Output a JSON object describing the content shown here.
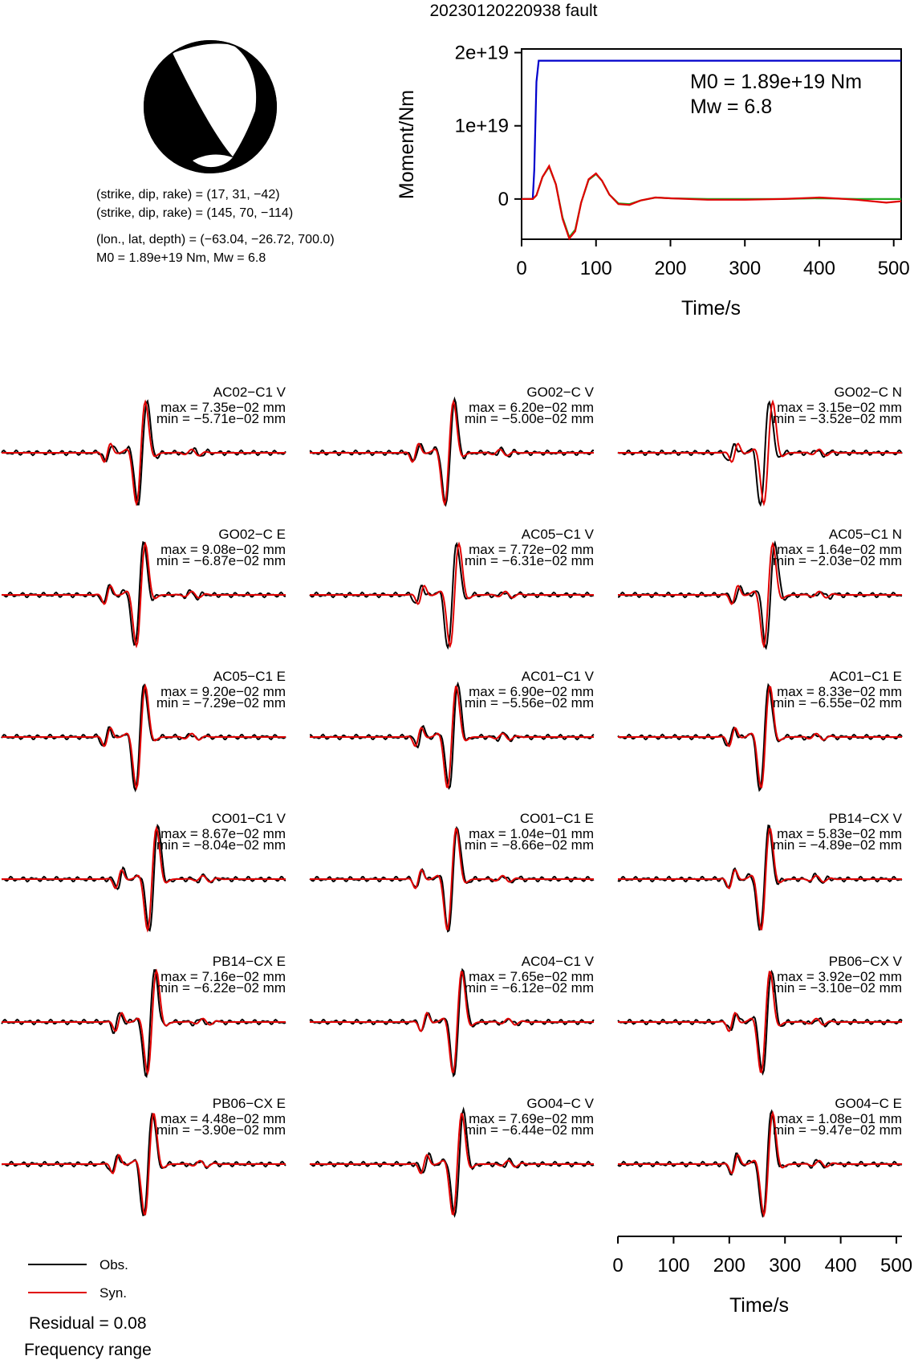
{
  "title": "20230120220938 fault",
  "mechanism": {
    "plane1": "(strike, dip, rake) = (17, 31, −42)",
    "plane2": "(strike, dip, rake) = (145, 70, −114)",
    "location": "(lon., lat, depth) = (−63.04, −26.72, 700.0)",
    "moment_line": "M0 = 1.89e+19 Nm, Mw = 6.8"
  },
  "moment_panel": {
    "ylabel": "Moment/Nm",
    "xlabel": "Time/s",
    "m0_label": "M0 = 1.89e+19 Nm",
    "mw_label": "Mw = 6.8"
  },
  "wave_xlabel": "Time/s",
  "legend": {
    "obs_label": "Obs.",
    "syn_label": "Syn.",
    "obs_color": "#000000",
    "syn_color": "#e00000"
  },
  "residual": "Residual = 0.08",
  "freq_label": "Frequency range",
  "colors": {
    "cumulative": "#0000cc",
    "stf": "#e00000",
    "stf_alt": "#22aa22"
  },
  "chart_data": [
    {
      "type": "line",
      "xlabel": "Time/s",
      "ylabel": "Moment/Nm",
      "xlim": [
        0,
        510
      ],
      "ylim": [
        -5.5e+18,
        2.05e+19
      ],
      "xticks": [
        0,
        100,
        200,
        300,
        400,
        500
      ],
      "yticks": [
        0,
        1e+19,
        2e+19
      ],
      "ytick_labels": [
        "0",
        "1e+19",
        "2e+19"
      ],
      "series": [
        {
          "color": "#0000cc",
          "x": [
            0,
            15,
            17,
            20,
            23,
            30,
            510
          ],
          "y": [
            0,
            0,
            4e+18,
            1.6e+19,
            1.89e+19,
            1.89e+19,
            1.89e+19
          ]
        },
        {
          "color": "#22aa22",
          "x": [
            0,
            15,
            20,
            28,
            37,
            46,
            55,
            64,
            72,
            80,
            90,
            100,
            108,
            118,
            130,
            145,
            160,
            180,
            200,
            250,
            300,
            350,
            400,
            450,
            510
          ],
          "y": [
            0,
            0,
            5e+17,
            3e+18,
            4.4e+18,
            2e+18,
            -2.5e+18,
            -5.2e+18,
            -4.2e+18,
            -5e+17,
            2.6e+18,
            3.4e+18,
            2.5e+18,
            6e+17,
            -6e+17,
            -7e+17,
            -2e+17,
            2e+17,
            1e+17,
            0,
            0,
            0,
            1e+17,
            0,
            0
          ]
        },
        {
          "color": "#e00000",
          "x": [
            0,
            15,
            20,
            28,
            37,
            46,
            55,
            64,
            72,
            80,
            90,
            100,
            108,
            118,
            130,
            145,
            160,
            180,
            200,
            250,
            300,
            350,
            400,
            420,
            450,
            490,
            510
          ],
          "y": [
            0,
            0,
            5e+17,
            3e+18,
            4.5e+18,
            2e+18,
            -2.7e+18,
            -5.4e+18,
            -4.4e+18,
            -5e+17,
            2.7e+18,
            3.5e+18,
            2.5e+18,
            6e+17,
            -7e+17,
            -8e+17,
            -2e+17,
            2e+17,
            1e+17,
            -1e+17,
            -1e+17,
            0,
            2e+17,
            1e+17,
            -1e+17,
            -5e+17,
            -3e+17
          ]
        }
      ]
    },
    {
      "type": "line",
      "xlabel": "Time/s",
      "xlim": [
        0,
        510
      ],
      "xticks": [
        0,
        100,
        200,
        300,
        400,
        500
      ],
      "series": [
        {
          "name": "Obs."
        },
        {
          "name": "Syn."
        }
      ],
      "traces": [
        {
          "station": "AC02−C1 V",
          "max": "max = 7.35e−02 mm",
          "min": "min = −5.71e−02 mm",
          "ymax": 0.0735,
          "ymin": -0.0571,
          "t0": 250,
          "shift": 3
        },
        {
          "station": "GO02−C V",
          "max": "max = 6.20e−02 mm",
          "min": "min = −5.00e−02 mm",
          "ymax": 0.062,
          "ymin": -0.05,
          "t0": 250,
          "shift": 2
        },
        {
          "station": "GO02−C N",
          "max": "max = 3.15e−02 mm",
          "min": "min = −3.52e−02 mm",
          "ymax": 0.0315,
          "ymin": -0.0352,
          "t0": 270,
          "shift": -6
        },
        {
          "station": "GO02−C E",
          "max": "max = 9.08e−02 mm",
          "min": "min = −6.87e−02 mm",
          "ymax": 0.0908,
          "ymin": -0.0687,
          "t0": 250,
          "shift": -3
        },
        {
          "station": "AC05−C1 V",
          "max": "max = 7.72e−02 mm",
          "min": "min = −6.31e−02 mm",
          "ymax": 0.0772,
          "ymin": -0.0631,
          "t0": 260,
          "shift": -4
        },
        {
          "station": "AC05−C1 N",
          "max": "max = 1.64e−02 mm",
          "min": "min = −2.03e−02 mm",
          "ymax": 0.0164,
          "ymin": -0.0203,
          "t0": 270,
          "shift": 4
        },
        {
          "station": "AC05−C1 E",
          "max": "max = 9.20e−02 mm",
          "min": "min = −7.29e−02 mm",
          "ymax": 0.092,
          "ymin": -0.0729,
          "t0": 250,
          "shift": -2
        },
        {
          "station": "AC01−C1 V",
          "max": "max = 6.90e−02 mm",
          "min": "min = −5.56e−02 mm",
          "ymax": 0.069,
          "ymin": -0.0556,
          "t0": 255,
          "shift": 3
        },
        {
          "station": "AC01−C1 E",
          "max": "max = 8.33e−02 mm",
          "min": "min = −6.55e−02 mm",
          "ymax": 0.0833,
          "ymin": -0.0655,
          "t0": 265,
          "shift": -2
        },
        {
          "station": "CO01−C1 V",
          "max": "max = 8.67e−02 mm",
          "min": "min = −8.04e−02 mm",
          "ymax": 0.0867,
          "ymin": -0.0804,
          "t0": 270,
          "shift": 3
        },
        {
          "station": "CO01−C1 E",
          "max": "max = 1.04e−01 mm",
          "min": "min = −8.66e−02 mm",
          "ymax": 0.104,
          "ymin": -0.0866,
          "t0": 255,
          "shift": 2
        },
        {
          "station": "PB14−CX V",
          "max": "max = 5.83e−02 mm",
          "min": "min = −4.89e−02 mm",
          "ymax": 0.0583,
          "ymin": -0.0489,
          "t0": 265,
          "shift": -2
        },
        {
          "station": "PB14−CX E",
          "max": "max = 7.16e−02 mm",
          "min": "min = −6.22e−02 mm",
          "ymax": 0.0716,
          "ymin": -0.0622,
          "t0": 270,
          "shift": -3
        },
        {
          "station": "AC04−C1 V",
          "max": "max = 7.65e−02 mm",
          "min": "min = −6.12e−02 mm",
          "ymax": 0.0765,
          "ymin": -0.0612,
          "t0": 265,
          "shift": 2
        },
        {
          "station": "PB06−CX V",
          "max": "max = 3.92e−02 mm",
          "min": "min = −3.10e−02 mm",
          "ymax": 0.0392,
          "ymin": -0.031,
          "t0": 265,
          "shift": 3
        },
        {
          "station": "PB06−CX E",
          "max": "max = 4.48e−02 mm",
          "min": "min = −3.90e−02 mm",
          "ymax": 0.0448,
          "ymin": -0.039,
          "t0": 265,
          "shift": -2
        },
        {
          "station": "GO04−C V",
          "max": "max = 7.69e−02 mm",
          "min": "min = −6.44e−02 mm",
          "ymax": 0.0769,
          "ymin": -0.0644,
          "t0": 265,
          "shift": 3
        },
        {
          "station": "GO04−C E",
          "max": "max = 1.08e−01 mm",
          "min": "min = −9.47e−02 mm",
          "ymax": 0.108,
          "ymin": -0.0947,
          "t0": 270,
          "shift": -2
        }
      ]
    }
  ]
}
